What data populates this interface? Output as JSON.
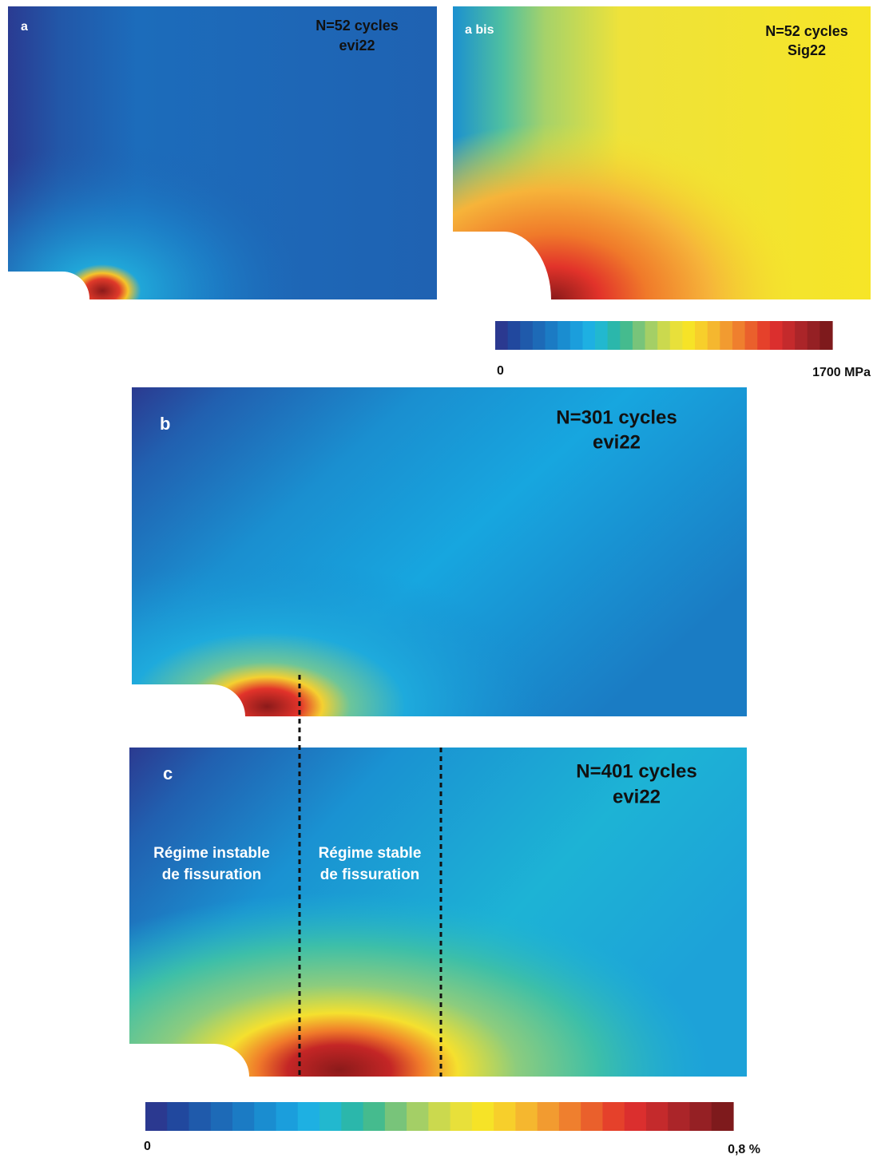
{
  "panels": [
    {
      "label": "a",
      "title": [
        "N=52 cycles",
        "evi22"
      ]
    },
    {
      "label": "a bis",
      "title": [
        "N=52 cycles",
        "Sig22"
      ]
    },
    {
      "label": "b",
      "title": [
        "N=301 cycles",
        "evi22"
      ]
    },
    {
      "label": "c",
      "title": [
        "N=401 cycles",
        "evi22"
      ]
    }
  ],
  "annotations": [
    [
      "Régime instable",
      "de fissuration"
    ],
    [
      "Régime stable",
      "de fissuration"
    ]
  ],
  "colorbars": [
    {
      "min_label": "0",
      "max_label": "1700 MPa"
    },
    {
      "min_label": "0",
      "max_label": "0,8 %"
    }
  ]
}
